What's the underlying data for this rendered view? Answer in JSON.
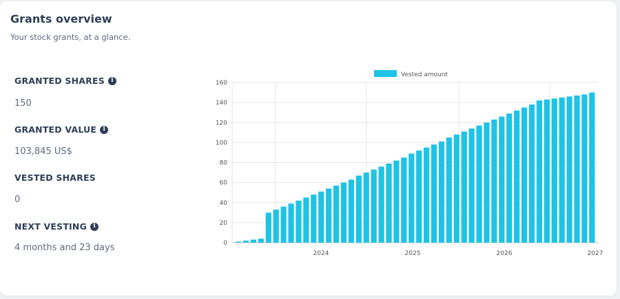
{
  "header": {
    "title": "Grants overview",
    "subtitle": "Your stock grants, at a glance."
  },
  "stats": [
    {
      "label": "GRANTED SHARES",
      "value": "150",
      "info_icon": "info-icon"
    },
    {
      "label": "GRANTED VALUE",
      "value": "103,845 US$",
      "info_icon": "info-icon"
    },
    {
      "label": "VESTED SHARES",
      "value": "0"
    },
    {
      "label": "NEXT VESTING",
      "value": "4 months and 23 days",
      "info_icon": "info-icon"
    }
  ],
  "colors": {
    "bar": "#1ec3e6",
    "text_dark": "#2f3e57",
    "text_muted": "#5e6a7d"
  },
  "chart_data": {
    "type": "bar",
    "legend": [
      "Vested amount"
    ],
    "legend_position": "top",
    "grid": true,
    "ylim": [
      0,
      160
    ],
    "yticks": [
      0,
      20,
      40,
      60,
      80,
      100,
      120,
      140,
      160
    ],
    "xtick_labels": [
      "2024",
      "2025",
      "2026",
      "2027"
    ],
    "series": [
      {
        "name": "Vested amount",
        "values": [
          1,
          2,
          3,
          4,
          30,
          33,
          36,
          39,
          42,
          45,
          48,
          51,
          54,
          57,
          60,
          63,
          67,
          70,
          73,
          76,
          79,
          82,
          85,
          89,
          92,
          95,
          98,
          101,
          105,
          108,
          111,
          114,
          117,
          120,
          123,
          126,
          129,
          132,
          135,
          138,
          142,
          143,
          144,
          145,
          146,
          147,
          148,
          150
        ]
      }
    ]
  }
}
